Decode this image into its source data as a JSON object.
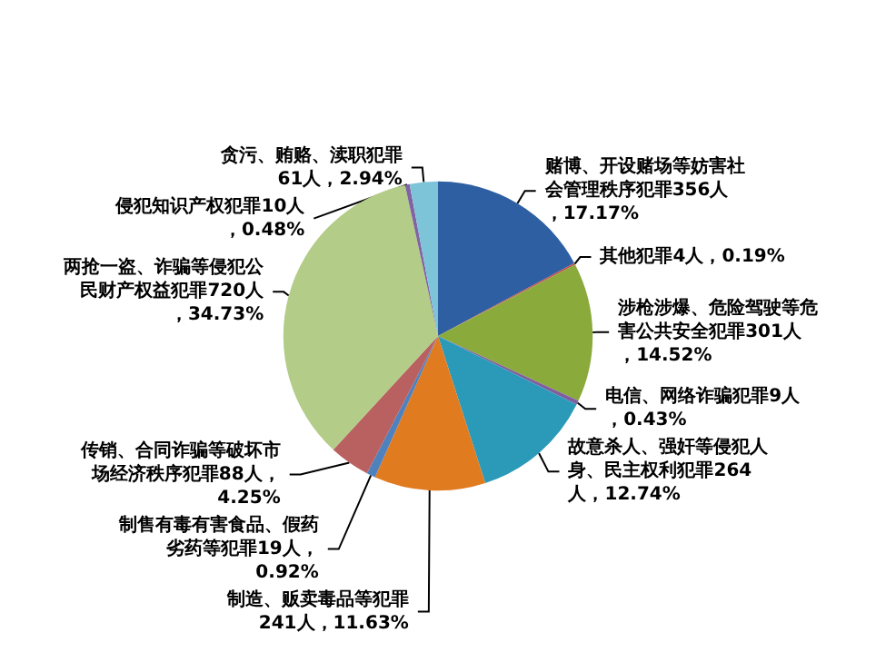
{
  "chart_data": {
    "type": "pie",
    "categories": [
      "赌博、开设赌场等妨害社会管理秩序犯罪356人，17.17%",
      "其他犯罪4人，0.19%",
      "涉枪涉爆、危险驾驶等危害公共安全犯罪301人，14.52%",
      "电信、网络诈骗犯罪9人，0.43%",
      "故意杀人、强奸等侵犯人身、民主权利犯罪264人，12.74%",
      "制造、贩卖毒品等犯罪241人，11.63%",
      "制售有毒有害食品、假药劣药等犯罪19人，0.92%",
      "传销、合同诈骗等破坏市场经济秩序犯罪88人，4.25%",
      "两抢一盗、诈骗等侵犯公民财产权益犯罪720人，34.73%",
      "侵犯知识产权犯罪10人，0.48%",
      "贪污、贿赂、渎职犯罪61人，2.94%"
    ],
    "values": [
      356,
      4,
      301,
      9,
      264,
      241,
      19,
      88,
      720,
      10,
      61
    ],
    "colors": [
      "#2e5fa3",
      "#c0504d",
      "#8aaa3c",
      "#7f5f9f",
      "#2b9ab8",
      "#e07b20",
      "#4f81bd",
      "#b96060",
      "#b3cc88",
      "#8064a2",
      "#7ec4d8"
    ]
  }
}
